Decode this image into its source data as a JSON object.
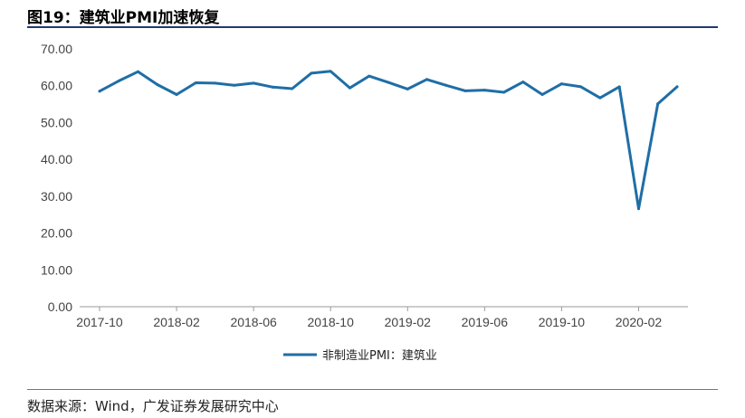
{
  "title": "图19：建筑业PMI加速恢复",
  "source": "数据来源：Wind，广发证券发展研究中心",
  "chart_data": {
    "type": "line",
    "ylim": [
      0,
      70
    ],
    "yticks": [
      "0.00",
      "10.00",
      "20.00",
      "30.00",
      "40.00",
      "50.00",
      "60.00",
      "70.00"
    ],
    "xticks": [
      "2017-10",
      "2018-02",
      "2018-06",
      "2018-10",
      "2019-02",
      "2019-06",
      "2019-10",
      "2020-02"
    ],
    "x": [
      "2017-10",
      "2017-11",
      "2017-12",
      "2018-01",
      "2018-02",
      "2018-03",
      "2018-04",
      "2018-05",
      "2018-06",
      "2018-07",
      "2018-08",
      "2018-09",
      "2018-10",
      "2018-11",
      "2018-12",
      "2019-01",
      "2019-02",
      "2019-03",
      "2019-04",
      "2019-05",
      "2019-06",
      "2019-07",
      "2019-08",
      "2019-09",
      "2019-10",
      "2019-11",
      "2019-12",
      "2020-01",
      "2020-02",
      "2020-03",
      "2020-04"
    ],
    "series": [
      {
        "name": "非制造业PMI：建筑业",
        "color": "#1f6ea6",
        "values": [
          58.5,
          61.3,
          63.8,
          60.3,
          57.6,
          60.8,
          60.7,
          60.1,
          60.7,
          59.6,
          59.2,
          63.4,
          63.9,
          59.4,
          62.6,
          60.9,
          59.1,
          61.7,
          60.1,
          58.6,
          58.8,
          58.2,
          61.0,
          57.6,
          60.5,
          59.7,
          56.7,
          59.7,
          26.6,
          55.1,
          59.7
        ]
      }
    ],
    "legend": "bottom-center",
    "grid": false
  }
}
